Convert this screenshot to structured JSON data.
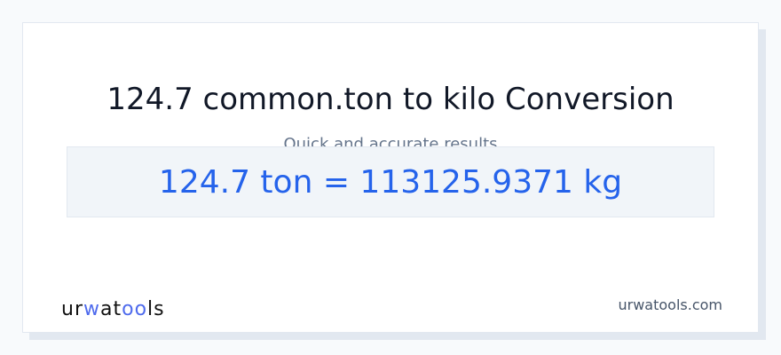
{
  "title": "124.7 common.ton to kilo Conversion",
  "subtitle": "Quick and accurate results",
  "result": "124.7 ton = 113125.9371 kg",
  "logo": {
    "text": "urwatools",
    "parts": [
      "ur",
      "w",
      "at",
      "oo",
      "ls"
    ]
  },
  "site": "urwatools.com",
  "colors": {
    "accent": "#2563eb",
    "logo_accent": "#4f6bed"
  }
}
